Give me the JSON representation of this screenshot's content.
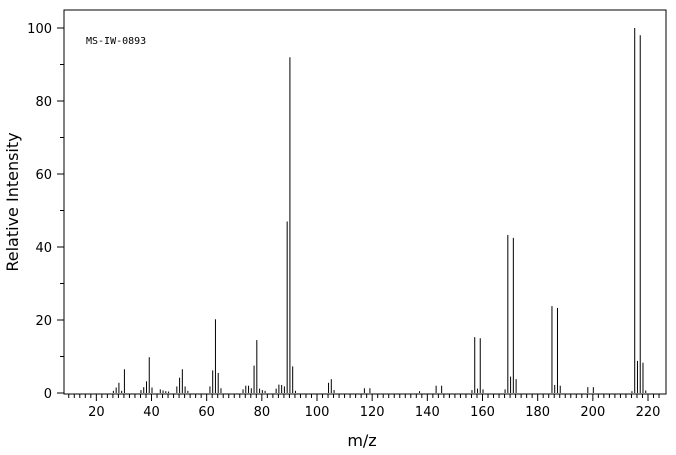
{
  "chart_data": {
    "type": "bar",
    "annotation": "MS-IW-0893",
    "xlabel": "m/z",
    "ylabel": "Relative Intensity",
    "xlim": [
      9,
      225
    ],
    "ylim": [
      0,
      100
    ],
    "x_ticks": [
      20,
      40,
      60,
      80,
      100,
      120,
      140,
      160,
      180,
      200,
      220
    ],
    "y_ticks": [
      0,
      20,
      40,
      60,
      80,
      100
    ],
    "grid": false,
    "color": "#000000",
    "peaks": [
      [
        26,
        0.6
      ],
      [
        27,
        1.5
      ],
      [
        28,
        2.8
      ],
      [
        29,
        0.6
      ],
      [
        30,
        6.5
      ],
      [
        36,
        0.8
      ],
      [
        37,
        1.6
      ],
      [
        38,
        3.2
      ],
      [
        39,
        9.8
      ],
      [
        40,
        1.5
      ],
      [
        43,
        1.0
      ],
      [
        44,
        0.7
      ],
      [
        45,
        0.5
      ],
      [
        46,
        0.4
      ],
      [
        49,
        1.8
      ],
      [
        50,
        4.2
      ],
      [
        51,
        6.5
      ],
      [
        52,
        1.8
      ],
      [
        53,
        0.6
      ],
      [
        61,
        1.8
      ],
      [
        62,
        6.2
      ],
      [
        63,
        20.2
      ],
      [
        64,
        5.5
      ],
      [
        65,
        1.3
      ],
      [
        73,
        1.0
      ],
      [
        74,
        2.0
      ],
      [
        75,
        2.0
      ],
      [
        76,
        1.3
      ],
      [
        77,
        7.5
      ],
      [
        78,
        14.5
      ],
      [
        79,
        1.2
      ],
      [
        80,
        0.8
      ],
      [
        81,
        0.6
      ],
      [
        85,
        1.2
      ],
      [
        86,
        2.3
      ],
      [
        87,
        2.2
      ],
      [
        88,
        1.8
      ],
      [
        89,
        47.0
      ],
      [
        90,
        92.0
      ],
      [
        91,
        7.3
      ],
      [
        92,
        0.6
      ],
      [
        104,
        2.8
      ],
      [
        105,
        3.8
      ],
      [
        106,
        0.8
      ],
      [
        117,
        1.3
      ],
      [
        119,
        1.3
      ],
      [
        137,
        0.5
      ],
      [
        143,
        2.0
      ],
      [
        145,
        2.0
      ],
      [
        156,
        0.8
      ],
      [
        157,
        15.3
      ],
      [
        158,
        1.2
      ],
      [
        159,
        15.0
      ],
      [
        160,
        1.0
      ],
      [
        168,
        1.0
      ],
      [
        169,
        43.3
      ],
      [
        170,
        4.5
      ],
      [
        171,
        42.5
      ],
      [
        172,
        3.8
      ],
      [
        185,
        23.8
      ],
      [
        186,
        2.2
      ],
      [
        187,
        23.3
      ],
      [
        188,
        2.0
      ],
      [
        198,
        1.6
      ],
      [
        200,
        1.6
      ],
      [
        214,
        0.5
      ],
      [
        215,
        100.0
      ],
      [
        216,
        8.8
      ],
      [
        217,
        98.0
      ],
      [
        218,
        8.3
      ],
      [
        219,
        0.7
      ]
    ]
  }
}
